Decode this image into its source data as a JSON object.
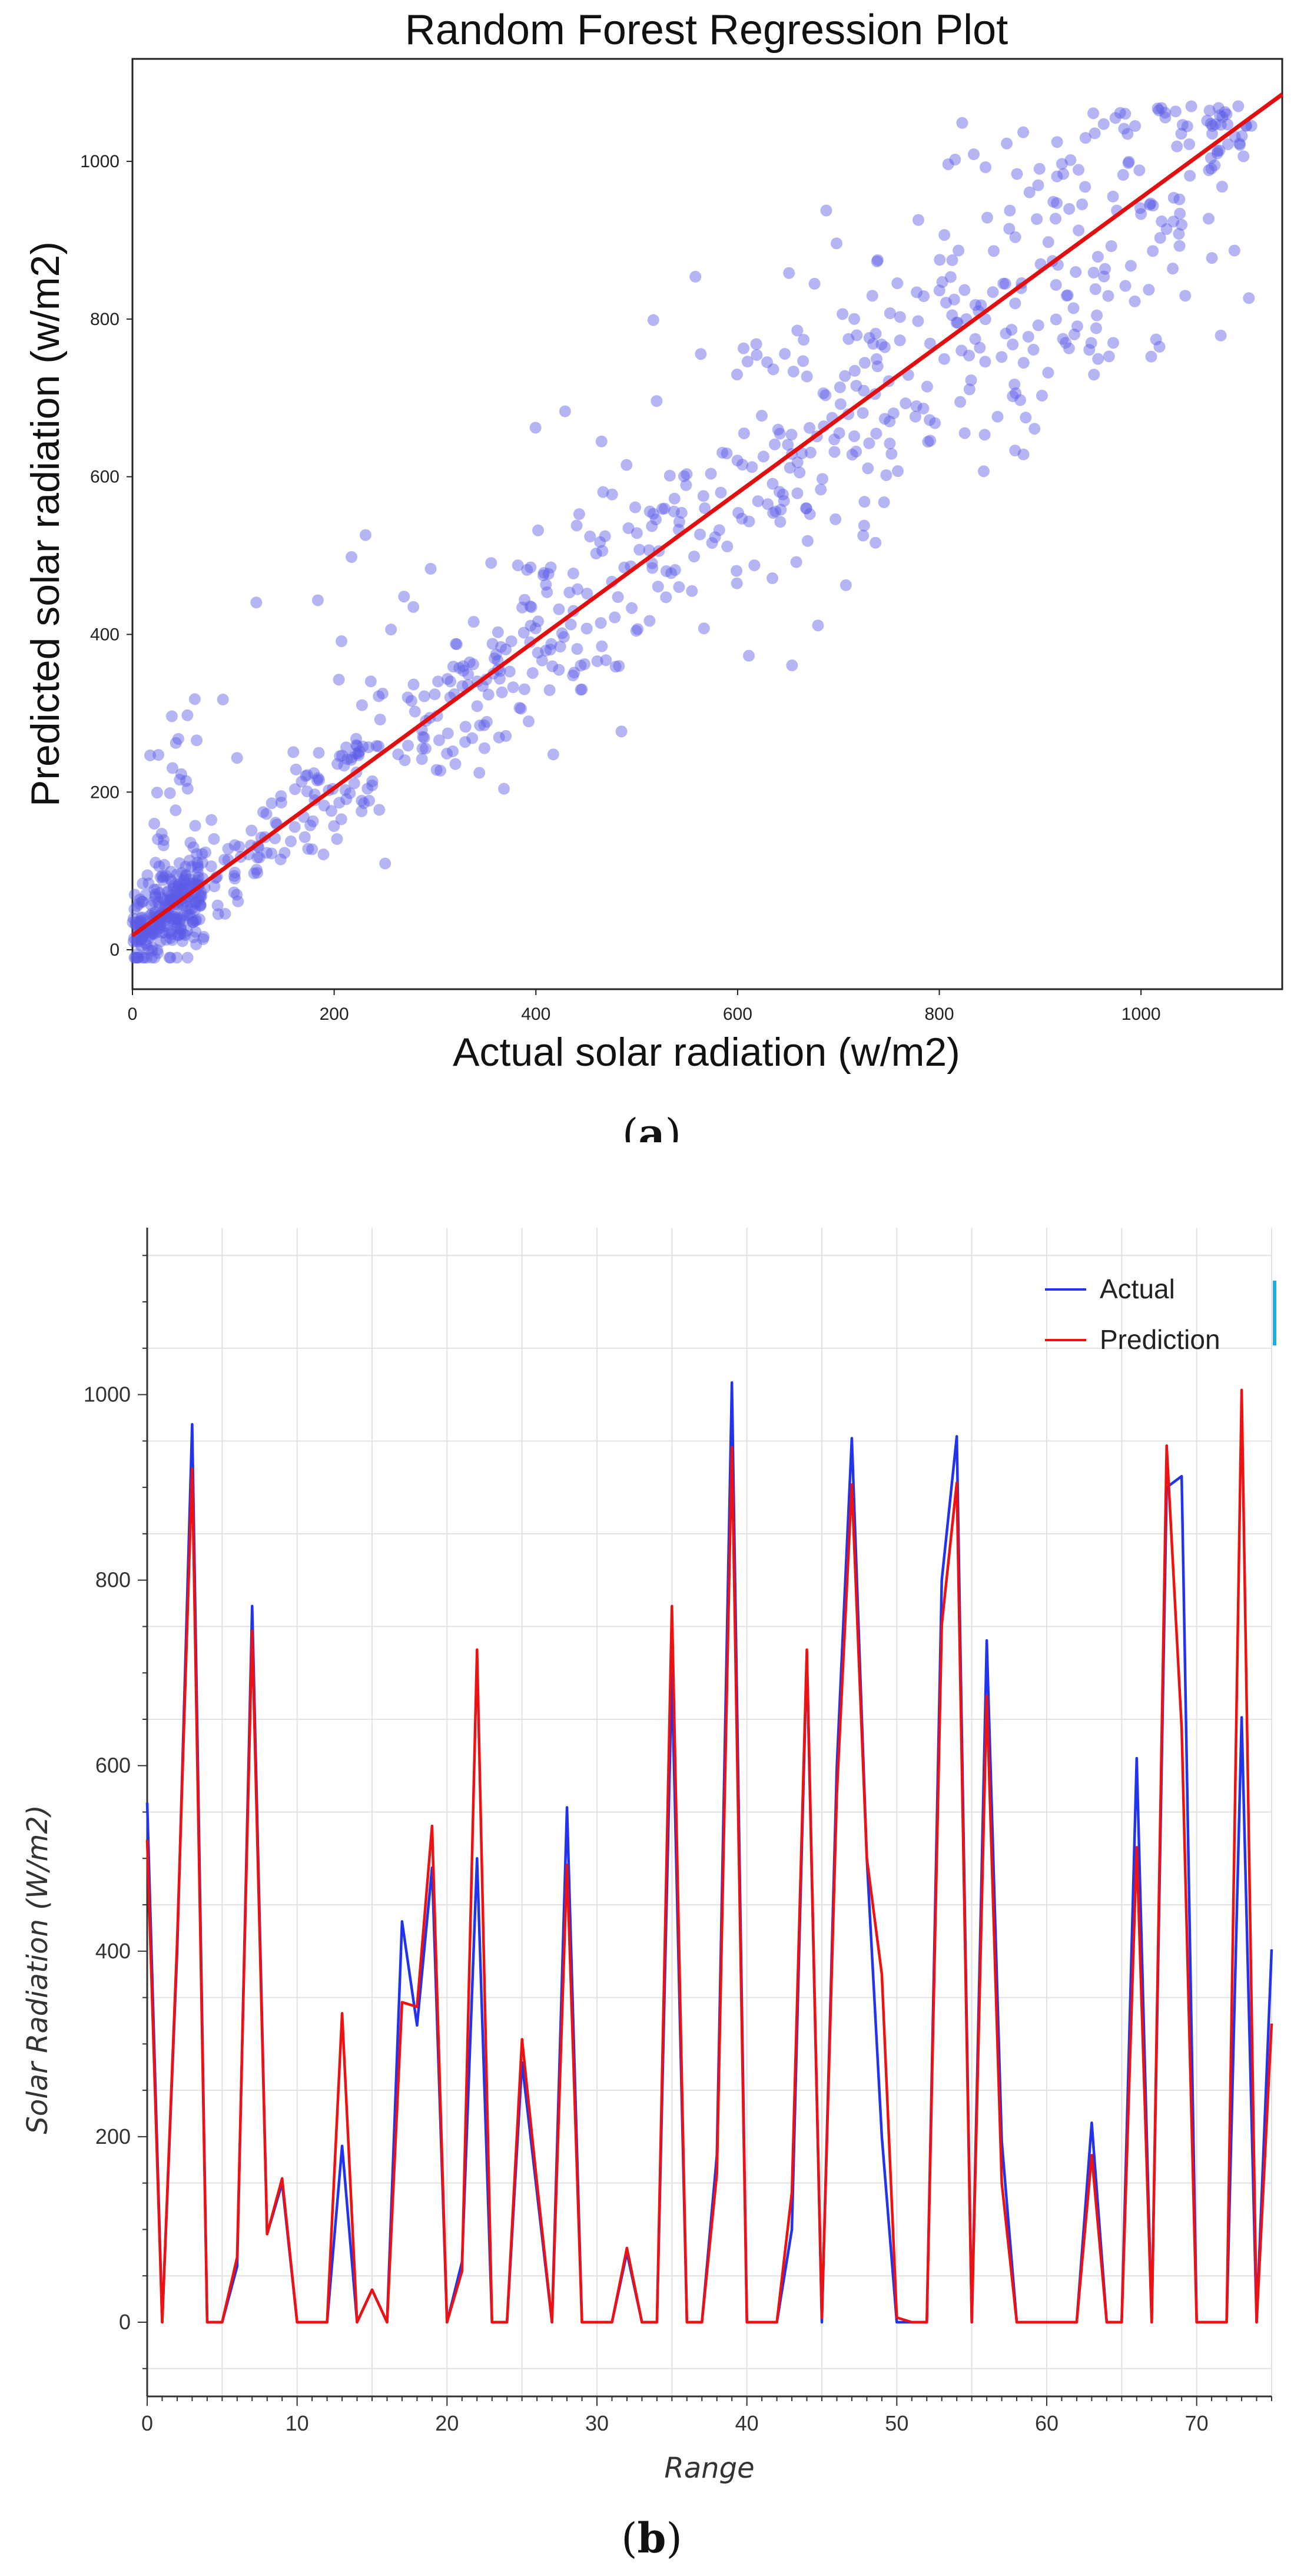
{
  "chart_data": [
    {
      "type": "scatter",
      "title": "Random Forest Regression Plot",
      "xlabel": "Actual solar radiation (w/m2)",
      "ylabel": "Predicted solar radiation (w/m2)",
      "xlim": [
        0,
        1140
      ],
      "ylim": [
        -50,
        1130
      ],
      "xticks": [
        0,
        200,
        400,
        600,
        800,
        1000
      ],
      "yticks": [
        0,
        200,
        400,
        600,
        800,
        1000
      ],
      "point_color": "#5a5ae6",
      "fit_color": "#e01010",
      "fit_line": {
        "x": [
          0,
          1140
        ],
        "y": [
          18,
          1085
        ]
      },
      "n_points": 950,
      "caption": "(a)",
      "caption_bold": "a"
    },
    {
      "type": "line",
      "title": "",
      "xlabel": "Range",
      "ylabel": "Solar Radiation (W/m2)",
      "xlim": [
        0,
        75
      ],
      "ylim": [
        -80,
        1180
      ],
      "xticks": [
        0,
        10,
        20,
        30,
        40,
        50,
        60,
        70
      ],
      "yticks": [
        0,
        200,
        400,
        600,
        800,
        1000
      ],
      "legend_position": "top-right",
      "caption": "(b)",
      "caption_bold": "b",
      "series": [
        {
          "name": "Actual",
          "color": "#2233ee",
          "x": [
            0,
            1,
            2,
            3,
            4,
            5,
            6,
            7,
            8,
            9,
            10,
            11,
            12,
            13,
            14,
            15,
            16,
            17,
            18,
            19,
            20,
            21,
            22,
            23,
            24,
            25,
            26,
            27,
            28,
            29,
            30,
            31,
            32,
            33,
            34,
            35,
            36,
            37,
            38,
            39,
            40,
            41,
            42,
            43,
            44,
            45,
            46,
            47,
            48,
            49,
            50,
            51,
            52,
            53,
            54,
            55,
            56,
            57,
            58,
            59,
            60,
            61,
            62,
            63,
            64,
            65,
            66,
            67,
            68,
            69,
            70,
            71,
            72,
            73,
            74,
            75
          ],
          "values": [
            560,
            0,
            400,
            968,
            0,
            0,
            60,
            772,
            95,
            150,
            0,
            0,
            0,
            190,
            0,
            35,
            0,
            432,
            320,
            490,
            0,
            65,
            500,
            0,
            0,
            280,
            140,
            0,
            555,
            0,
            0,
            0,
            75,
            0,
            0,
            700,
            0,
            0,
            180,
            1013,
            0,
            0,
            0,
            100,
            720,
            0,
            600,
            953,
            500,
            200,
            0,
            0,
            0,
            800,
            955,
            0,
            735,
            195,
            0,
            0,
            0,
            0,
            0,
            215,
            0,
            0,
            608,
            0,
            900,
            912,
            0,
            0,
            0,
            652,
            0,
            402
          ]
        },
        {
          "name": "Prediction",
          "color": "#ee1111",
          "x": [
            0,
            1,
            2,
            3,
            4,
            5,
            6,
            7,
            8,
            9,
            10,
            11,
            12,
            13,
            14,
            15,
            16,
            17,
            18,
            19,
            20,
            21,
            22,
            23,
            24,
            25,
            26,
            27,
            28,
            29,
            30,
            31,
            32,
            33,
            34,
            35,
            36,
            37,
            38,
            39,
            40,
            41,
            42,
            43,
            44,
            45,
            46,
            47,
            48,
            49,
            50,
            51,
            52,
            53,
            54,
            55,
            56,
            57,
            58,
            59,
            60,
            61,
            62,
            63,
            64,
            65,
            66,
            67,
            68,
            69,
            70,
            71,
            72,
            73,
            74,
            75
          ],
          "values": [
            520,
            0,
            410,
            920,
            0,
            0,
            70,
            745,
            95,
            155,
            0,
            0,
            0,
            333,
            0,
            35,
            0,
            345,
            340,
            535,
            0,
            55,
            725,
            0,
            0,
            305,
            150,
            0,
            493,
            0,
            0,
            0,
            80,
            0,
            0,
            772,
            0,
            0,
            160,
            943,
            0,
            0,
            0,
            140,
            725,
            5,
            570,
            903,
            500,
            375,
            5,
            0,
            0,
            752,
            905,
            0,
            675,
            150,
            0,
            0,
            0,
            0,
            0,
            180,
            0,
            0,
            512,
            0,
            945,
            640,
            0,
            0,
            0,
            1005,
            0,
            322
          ]
        }
      ]
    }
  ]
}
